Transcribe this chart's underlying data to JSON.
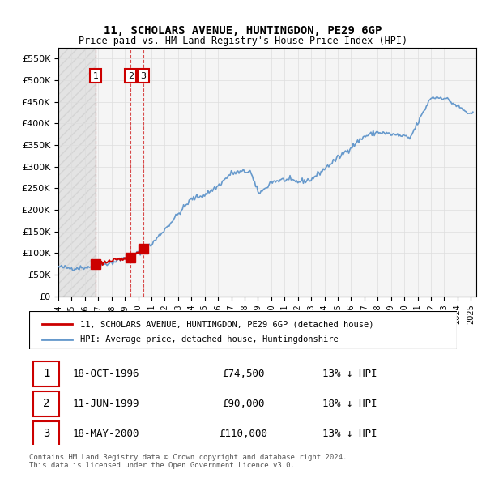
{
  "title": "11, SCHOLARS AVENUE, HUNTINGDON, PE29 6GP",
  "subtitle": "Price paid vs. HM Land Registry's House Price Index (HPI)",
  "legend_line1": "11, SCHOLARS AVENUE, HUNTINGDON, PE29 6GP (detached house)",
  "legend_line2": "HPI: Average price, detached house, Huntingdonshire",
  "transactions": [
    {
      "num": 1,
      "date": "1996-10-18",
      "price": 74500,
      "pct": "13%",
      "dir": "↓"
    },
    {
      "num": 2,
      "date": "1999-06-11",
      "price": 90000,
      "pct": "18%",
      "dir": "↓"
    },
    {
      "num": 3,
      "date": "2000-05-18",
      "price": 110000,
      "pct": "13%",
      "dir": "↓"
    }
  ],
  "table_rows": [
    [
      "1",
      "18-OCT-1996",
      "£74,500",
      "13% ↓ HPI"
    ],
    [
      "2",
      "11-JUN-1999",
      "£90,000",
      "18% ↓ HPI"
    ],
    [
      "3",
      "18-MAY-2000",
      "£110,000",
      "13% ↓ HPI"
    ]
  ],
  "footer": "Contains HM Land Registry data © Crown copyright and database right 2024.\nThis data is licensed under the Open Government Licence v3.0.",
  "sold_color": "#cc0000",
  "hpi_color": "#6699cc",
  "ylim": [
    0,
    575000
  ],
  "yticks": [
    0,
    50000,
    100000,
    150000,
    200000,
    250000,
    300000,
    350000,
    400000,
    450000,
    500000,
    550000
  ],
  "background_color": "#ffffff",
  "plot_bg_color": "#f5f5f5",
  "grid_color": "#dddddd"
}
